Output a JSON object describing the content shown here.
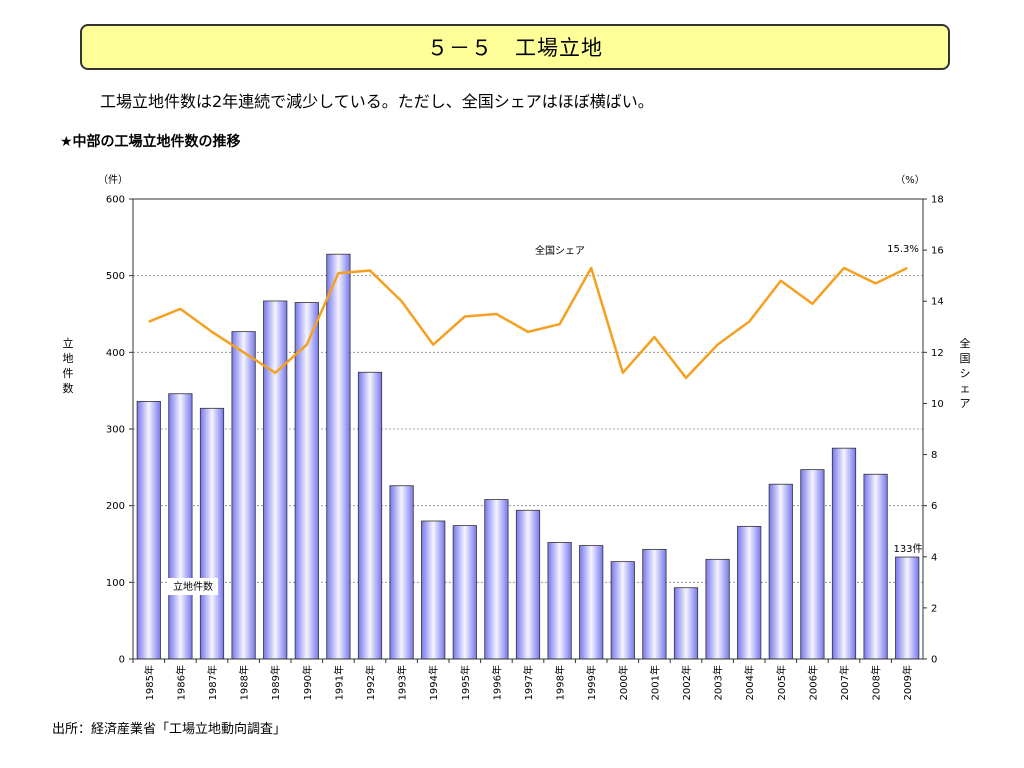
{
  "page": {
    "title": "５－５　工場立地",
    "headline": "工場立地件数は2年連続で減少している。ただし、全国シェアはほぼ横ばい。",
    "subtitle": "★中部の工場立地件数の推移",
    "source": "出所：経済産業省「工場立地動向調査」"
  },
  "chart_data": {
    "type": "bar",
    "title": "",
    "categories": [
      "1985年",
      "1986年",
      "1987年",
      "1988年",
      "1989年",
      "1990年",
      "1991年",
      "1992年",
      "1993年",
      "1994年",
      "1995年",
      "1996年",
      "1997年",
      "1998年",
      "1999年",
      "2000年",
      "2001年",
      "2002年",
      "2003年",
      "2004年",
      "2005年",
      "2006年",
      "2007年",
      "2008年",
      "2009年"
    ],
    "left_axis": {
      "unit": "（件）",
      "label": "立地件数",
      "range": [
        0,
        600
      ],
      "ticks": [
        0,
        100,
        200,
        300,
        400,
        500,
        600
      ]
    },
    "right_axis": {
      "unit": "（%）",
      "label": "全国シェア",
      "range": [
        0,
        18
      ],
      "ticks": [
        0,
        2,
        4,
        6,
        8,
        10,
        12,
        14,
        16,
        18
      ]
    },
    "series": [
      {
        "name": "立地件数",
        "type": "bar",
        "axis": "left",
        "color": "#9999ff",
        "values": [
          336,
          346,
          327,
          427,
          467,
          465,
          528,
          374,
          226,
          180,
          174,
          208,
          194,
          152,
          148,
          127,
          143,
          93,
          130,
          173,
          228,
          247,
          275,
          241,
          133
        ]
      },
      {
        "name": "全国シェア",
        "type": "line",
        "axis": "right",
        "color": "#f5a020",
        "values": [
          13.2,
          13.7,
          12.8,
          12.0,
          11.2,
          12.3,
          15.1,
          15.2,
          14.0,
          12.3,
          13.4,
          13.5,
          12.8,
          13.1,
          15.3,
          11.2,
          12.6,
          11.0,
          12.3,
          13.2,
          14.8,
          13.9,
          15.3,
          14.7,
          15.3
        ]
      }
    ],
    "annotations": [
      {
        "text": "15.3%",
        "target": "全国シェア-2009年"
      },
      {
        "text": "133件",
        "target": "立地件数-2009年"
      }
    ],
    "grid": true,
    "legend": "inline labels"
  }
}
